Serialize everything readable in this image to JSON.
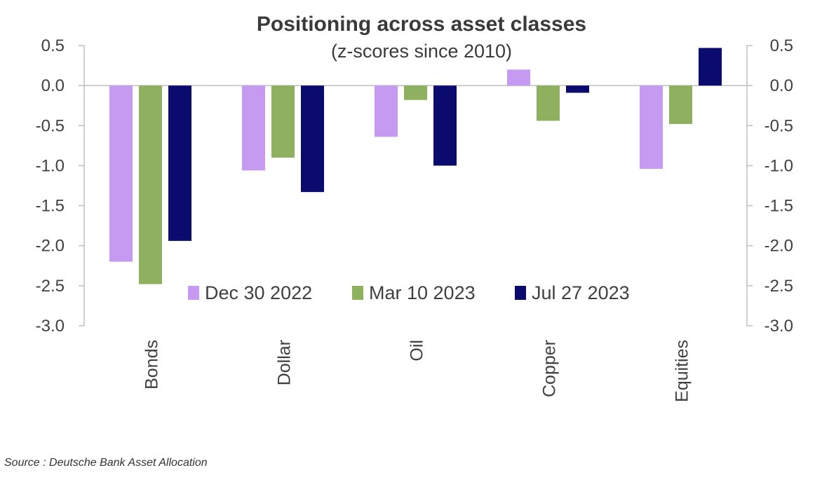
{
  "chart_data": {
    "type": "bar",
    "title": "Positioning across asset classes",
    "subtitle": "(z-scores since 2010)",
    "categories": [
      "Bonds",
      "Dollar",
      "Oil",
      "Copper",
      "Equities"
    ],
    "series": [
      {
        "name": "Dec 30 2022",
        "color": "#c79af2",
        "values": [
          -2.2,
          -1.06,
          -0.64,
          0.2,
          -1.04
        ]
      },
      {
        "name": "Mar 10 2023",
        "color": "#8fb05e",
        "values": [
          -2.48,
          -0.9,
          -0.18,
          -0.44,
          -0.48
        ]
      },
      {
        "name": "Jul 27 2023",
        "color": "#0b0b6e",
        "values": [
          -1.94,
          -1.33,
          -1.0,
          -0.09,
          0.47
        ]
      }
    ],
    "ylim": [
      -3.0,
      0.5
    ],
    "yticks": [
      "0.5",
      "0.0",
      "-0.5",
      "-1.0",
      "-1.5",
      "-2.0",
      "-2.5",
      "-3.0"
    ],
    "xlabel": "",
    "ylabel": "",
    "legend_position": "bottom-center"
  },
  "source": "Source : Deutsche Bank Asset Allocation"
}
